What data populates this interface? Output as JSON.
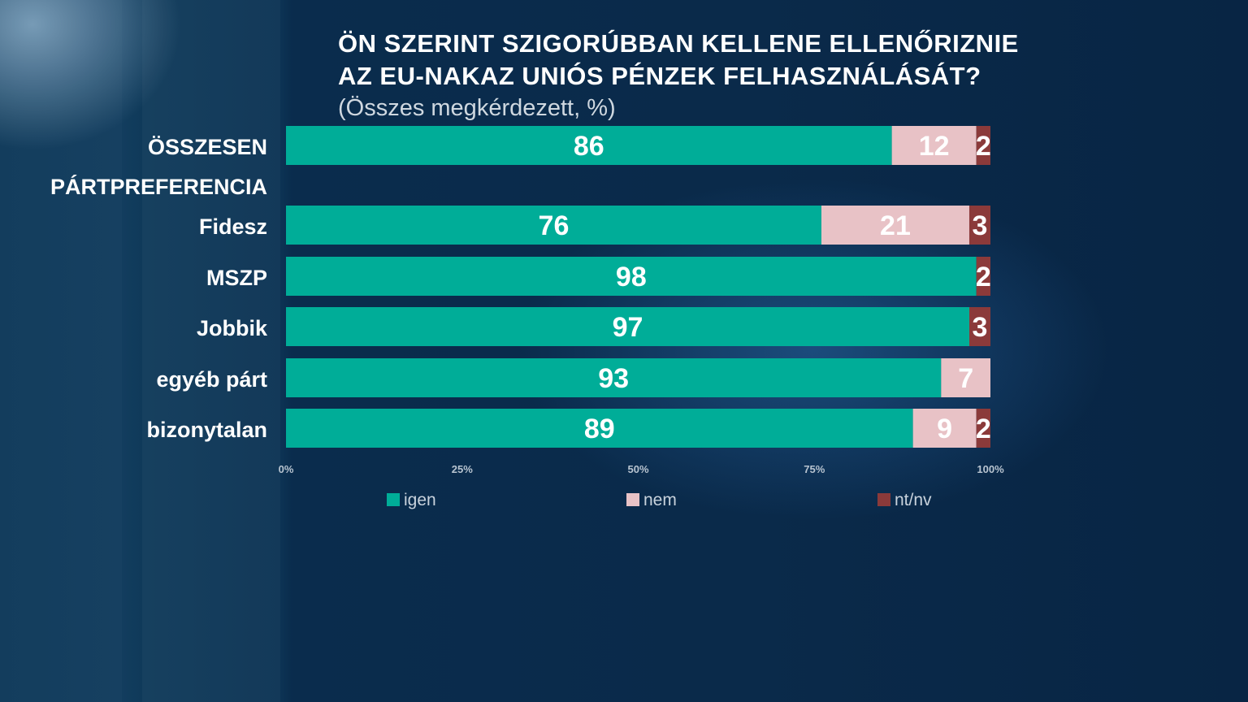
{
  "header": {
    "title_line1": "ÖN SZERINT SZIGORÚBBAN KELLENE ELLENŐRIZNIE",
    "title_line2": "AZ EU-NAKAZ UNIÓS PÉNZEK FELHASZNÁLÁSÁT?",
    "subtitle": "(Összes megkérdezett, %)"
  },
  "colors": {
    "igen": "#00ad98",
    "nem": "#e8c2c6",
    "ntnv": "#8b3a3a"
  },
  "chart_data": {
    "type": "bar",
    "orientation": "horizontal",
    "stacked": true,
    "title": "ÖN SZERINT SZIGORÚBBAN KELLENE ELLENŐRIZNIE AZ EU-NAKAZ UNIÓS PÉNZEK FELHASZNÁLÁSÁT?",
    "subtitle": "(Összes megkérdezett, %)",
    "section_label": "PÁRTPREFERENCIA",
    "categories": [
      "ÖSSZESEN",
      "Fidesz",
      "MSZP",
      "Jobbik",
      "egyéb párt",
      "bizonytalan"
    ],
    "series": [
      {
        "name": "igen",
        "values": [
          86,
          76,
          98,
          97,
          93,
          89
        ]
      },
      {
        "name": "nem",
        "values": [
          12,
          21,
          0,
          0,
          7,
          9
        ]
      },
      {
        "name": "nt/nv",
        "values": [
          2,
          3,
          2,
          3,
          0,
          2
        ]
      }
    ],
    "xlim": [
      0,
      100
    ],
    "x_ticks": [
      "0%",
      "25%",
      "50%",
      "75%",
      "100%"
    ],
    "grid": false,
    "legend_position": "bottom"
  }
}
